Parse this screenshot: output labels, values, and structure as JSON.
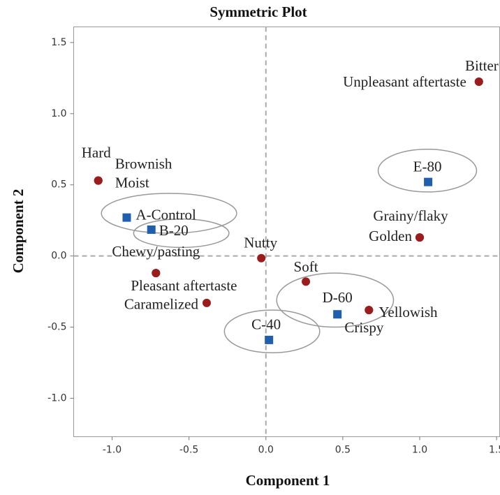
{
  "chart_data": {
    "type": "scatter",
    "title": "Symmetric Plot",
    "x_label": "Component 1",
    "y_label": "Component 2",
    "xlim": [
      -1.25,
      1.52
    ],
    "ylim": [
      -1.27,
      1.61
    ],
    "xticks": [
      {
        "value": -1,
        "label": "-1.0"
      },
      -0.5,
      {
        "value": 0,
        "label": "0.0"
      },
      0.5,
      {
        "value": 1,
        "label": "1.0"
      },
      1.5
    ],
    "yticks": [
      {
        "value": -1,
        "label": "-1.0"
      },
      -0.5,
      {
        "value": 0,
        "label": "0.0"
      },
      0.5,
      {
        "value": 1,
        "label": "1.0"
      },
      1.5
    ],
    "reference_lines": {
      "x": 0,
      "y": 0
    },
    "series": [
      {
        "color": "#9b1c1c",
        "marker": "circle",
        "labels": [
          "Bitter",
          "Unpleasant aftertaste",
          "Hard",
          "Brownish",
          "Moist",
          "Grainy/flaky",
          "Golden",
          "Chewy/pasting",
          "Pleasant aftertaste",
          "Caramelized",
          "Nutty",
          "Soft",
          "Yellowish",
          "Crispy"
        ],
        "x": [
          1.385,
          1.385,
          -1.09,
          -1.09,
          -1.09,
          1.0,
          1.0,
          -0.715,
          -0.715,
          -0.385,
          -0.03,
          0.26,
          0.67,
          0.67
        ],
        "values": [
          1.225,
          1.225,
          0.53,
          0.53,
          0.53,
          0.13,
          0.13,
          -0.12,
          -0.12,
          -0.33,
          -0.015,
          -0.18,
          -0.38,
          -0.38
        ]
      },
      {
        "color": "#1f5fad",
        "marker": "square",
        "labels": [
          "A-Control",
          "B-20",
          "C-40",
          "D-60",
          "E-80"
        ],
        "x": [
          -0.905,
          -0.745,
          0.02,
          0.465,
          1.055
        ],
        "values": [
          0.27,
          0.185,
          -0.59,
          -0.41,
          0.52
        ],
        "ellipses": [
          {
            "cx": -0.63,
            "cy": 0.3,
            "rx": 0.44,
            "ry": 0.14
          },
          {
            "cx": -0.55,
            "cy": 0.16,
            "rx": 0.31,
            "ry": 0.1
          },
          {
            "cx": 0.04,
            "cy": -0.53,
            "rx": 0.31,
            "ry": 0.15
          },
          {
            "cx": 0.45,
            "cy": -0.31,
            "rx": 0.38,
            "ry": 0.19
          },
          {
            "cx": 1.05,
            "cy": 0.6,
            "rx": 0.32,
            "ry": 0.15
          }
        ]
      }
    ]
  }
}
